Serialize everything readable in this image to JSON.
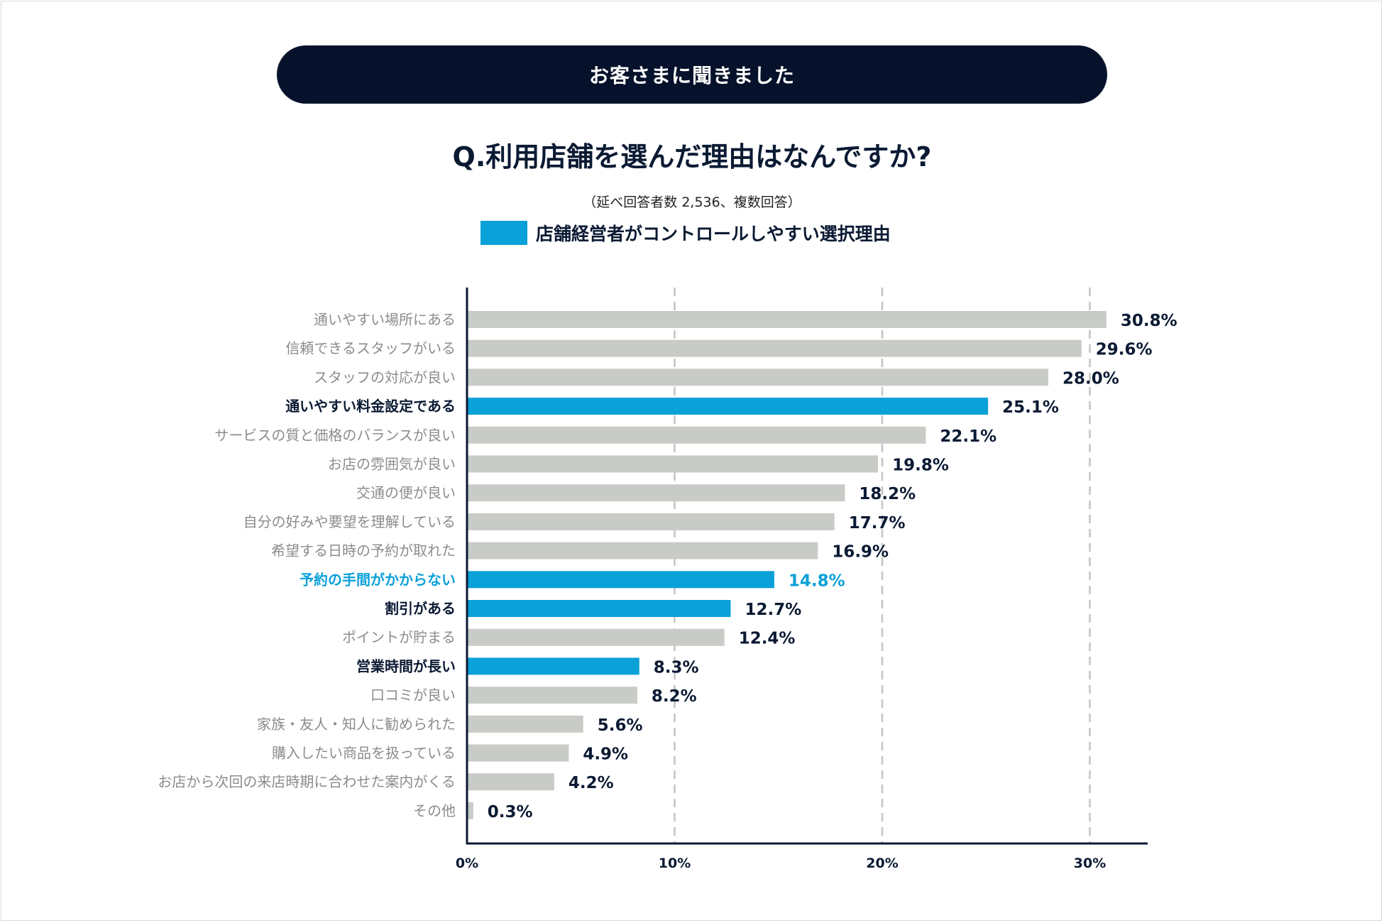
{
  "header": {
    "banner": "お客さまに聞きました",
    "question": "Q.利用店舗を選んだ理由はなんですか?",
    "subtitle": "（延べ回答者数 2,536、複数回答）",
    "legend_label": "店舗経営者がコントロールしやすい選択理由"
  },
  "colors": {
    "highlight": "#0aa0d8",
    "gray_bar": "#c8cbc6",
    "label_gray": "#8a8d8a",
    "label_dark": "#0b1a33",
    "banner_bg": "#06122b"
  },
  "chart_data": {
    "type": "bar",
    "orientation": "horizontal",
    "title": "Q.利用店舗を選んだ理由はなんですか?",
    "xlim": [
      0,
      33
    ],
    "xticks": [
      0,
      10,
      20,
      30
    ],
    "xtick_labels": [
      "0%",
      "10%",
      "20%",
      "30%"
    ],
    "grid": "vertical dashed",
    "legend": [
      {
        "label": "店舗経営者がコントロールしやすい選択理由",
        "color": "#0aa0d8"
      }
    ],
    "categories": [
      "通いやすい場所にある",
      "信頼できるスタッフがいる",
      "スタッフの対応が良い",
      "通いやすい料金設定である",
      "サービスの質と価格のバランスが良い",
      "お店の雰囲気が良い",
      "交通の便が良い",
      "自分の好みや要望を理解している",
      "希望する日時の予約が取れた",
      "予約の手間がかからない",
      "割引がある",
      "ポイントが貯まる",
      "営業時間が長い",
      "口コミが良い",
      "家族・友人・知人に勧められた",
      "購入したい商品を扱っている",
      "お店から次回の来店時期に合わせた案内がくる",
      "その他"
    ],
    "values": [
      30.8,
      29.6,
      28.0,
      25.1,
      22.1,
      19.8,
      18.2,
      17.7,
      16.9,
      14.8,
      12.7,
      12.4,
      8.3,
      8.2,
      5.6,
      4.9,
      4.2,
      0.3
    ],
    "value_labels": [
      "30.8%",
      "29.6%",
      "28.0%",
      "25.1%",
      "22.1%",
      "19.8%",
      "18.2%",
      "17.7%",
      "16.9%",
      "14.8%",
      "12.7%",
      "12.4%",
      "8.3%",
      "8.2%",
      "5.6%",
      "4.9%",
      "4.2%",
      "0.3%"
    ],
    "highlighted": [
      false,
      false,
      false,
      true,
      false,
      false,
      false,
      false,
      false,
      true,
      true,
      false,
      true,
      false,
      false,
      false,
      false,
      false
    ],
    "accent_text": [
      false,
      false,
      false,
      false,
      false,
      false,
      false,
      false,
      false,
      true,
      false,
      false,
      false,
      false,
      false,
      false,
      false,
      false
    ]
  }
}
